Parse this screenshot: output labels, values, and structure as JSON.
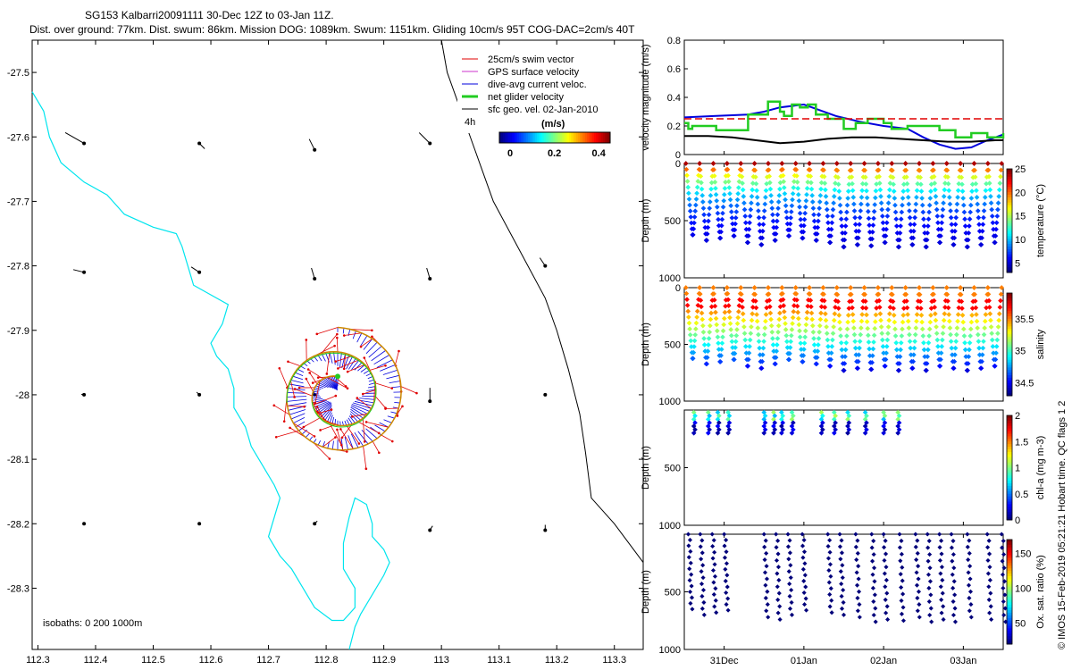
{
  "title": {
    "line1": "SG153 Kalbarri20091111 30-Dec 12Z to 03-Jan 11Z.",
    "line2": "Dist. over ground: 77km. Dist. swum: 86km. Mission DOG: 1089km. Swum: 1151km. Gliding 10cm/s 95T COG-DAC=2cm/s 40T"
  },
  "side_note": "© IMOS 15-Feb-2019 05:21:21 Hobart time. QC flags 1  2",
  "colors": {
    "swim": "#e00000",
    "gps": "#cc33cc",
    "dac": "#0000dd",
    "net": "#22cc22",
    "geo": "#000000",
    "coast": "#00e5ee",
    "isobath": "#000000",
    "oxygen": "#00007a"
  },
  "chart_data": [
    {
      "type": "map",
      "name": "glider track map",
      "xlabel": "",
      "ylabel": "",
      "xlim": [
        112.29,
        113.35
      ],
      "ylim": [
        -28.395,
        -27.45
      ],
      "xticks": [
        "112.3",
        "112.4",
        "112.5",
        "112.6",
        "112.7",
        "112.8",
        "112.9",
        "113",
        "113.1",
        "113.2",
        "113.3"
      ],
      "xtick_values": [
        112.3,
        112.4,
        112.5,
        112.6,
        112.7,
        112.8,
        112.9,
        113.0,
        113.1,
        113.2,
        113.3
      ],
      "yticks": [
        "-27.5",
        "-27.6",
        "-27.7",
        "-27.8",
        "-27.9",
        "-28",
        "-28.1",
        "-28.2",
        "-28.3"
      ],
      "ytick_values": [
        -27.5,
        -27.6,
        -27.7,
        -27.8,
        -27.9,
        -28.0,
        -28.1,
        -28.2,
        -28.3
      ],
      "legend": {
        "placement": "top-right",
        "items": [
          {
            "label": "25cm/s swim vector",
            "color_key": "swim"
          },
          {
            "label": "GPS surface velocity",
            "color_key": "gps"
          },
          {
            "label": "dive-avg current veloc.",
            "color_key": "dac"
          },
          {
            "label": "net glider velocity",
            "color_key": "net"
          },
          {
            "label": "sfc geo. vel. 02-Jan-2010",
            "color_key": "geo"
          }
        ],
        "extra_label": "4h"
      },
      "colorbar": {
        "title": "(m/s)",
        "ticks": [
          "0",
          "0.2",
          "0.4"
        ],
        "tick_values": [
          0,
          0.2,
          0.4
        ],
        "range": [
          0,
          0.5
        ]
      },
      "isobath_note": "isobaths: 0   200  1000m",
      "coastline_0m": [
        [
          112.29,
          -27.53
        ],
        [
          112.31,
          -27.56
        ],
        [
          112.32,
          -27.6
        ],
        [
          112.34,
          -27.64
        ],
        [
          112.38,
          -27.67
        ],
        [
          112.42,
          -27.69
        ],
        [
          112.45,
          -27.72
        ],
        [
          112.5,
          -27.74
        ],
        [
          112.54,
          -27.75
        ],
        [
          112.55,
          -27.77
        ],
        [
          112.56,
          -27.8
        ],
        [
          112.57,
          -27.83
        ],
        [
          112.63,
          -27.86
        ],
        [
          112.62,
          -27.89
        ],
        [
          112.6,
          -27.92
        ],
        [
          112.61,
          -27.94
        ],
        [
          112.63,
          -27.96
        ],
        [
          112.64,
          -27.99
        ],
        [
          112.64,
          -28.02
        ],
        [
          112.66,
          -28.05
        ],
        [
          112.67,
          -28.08
        ],
        [
          112.69,
          -28.11
        ],
        [
          112.71,
          -28.14
        ],
        [
          112.72,
          -28.16
        ],
        [
          112.71,
          -28.19
        ],
        [
          112.7,
          -28.22
        ],
        [
          112.72,
          -28.25
        ],
        [
          112.74,
          -28.27
        ],
        [
          112.76,
          -28.3
        ],
        [
          112.78,
          -28.33
        ],
        [
          112.81,
          -28.35
        ],
        [
          112.83,
          -28.35
        ],
        [
          112.85,
          -28.33
        ],
        [
          112.85,
          -28.3
        ],
        [
          112.83,
          -28.27
        ],
        [
          112.83,
          -28.23
        ],
        [
          112.84,
          -28.19
        ],
        [
          112.85,
          -28.16
        ],
        [
          112.87,
          -28.17
        ],
        [
          112.88,
          -28.2
        ],
        [
          112.88,
          -28.22
        ],
        [
          112.9,
          -28.24
        ],
        [
          112.91,
          -28.26
        ],
        [
          112.9,
          -28.28
        ],
        [
          112.88,
          -28.31
        ],
        [
          112.86,
          -28.34
        ],
        [
          112.85,
          -28.36
        ],
        [
          112.84,
          -28.395
        ]
      ],
      "isobath_200m": [
        [
          113.0,
          -27.45
        ],
        [
          113.01,
          -27.5
        ],
        [
          113.03,
          -27.55
        ],
        [
          113.05,
          -27.6
        ],
        [
          113.07,
          -27.65
        ],
        [
          113.09,
          -27.7
        ],
        [
          113.12,
          -27.75
        ],
        [
          113.15,
          -27.8
        ],
        [
          113.18,
          -27.85
        ],
        [
          113.2,
          -27.9
        ],
        [
          113.22,
          -27.96
        ],
        [
          113.24,
          -28.03
        ],
        [
          113.25,
          -28.09
        ],
        [
          113.26,
          -28.16
        ],
        [
          113.3,
          -28.2
        ],
        [
          113.35,
          -28.26
        ]
      ],
      "geo_vectors": [
        {
          "lon": 112.38,
          "lat": -27.61,
          "u": 0.35,
          "v": 0.2
        },
        {
          "lon": 112.58,
          "lat": -27.61,
          "u": -0.1,
          "v": -0.1
        },
        {
          "lon": 112.78,
          "lat": -27.62,
          "u": 0.1,
          "v": 0.2
        },
        {
          "lon": 112.98,
          "lat": -27.61,
          "u": 0.2,
          "v": 0.2
        },
        {
          "lon": 112.38,
          "lat": -27.81,
          "u": 0.2,
          "v": 0.05
        },
        {
          "lon": 112.58,
          "lat": -27.81,
          "u": 0.15,
          "v": 0.1
        },
        {
          "lon": 112.78,
          "lat": -27.82,
          "u": 0.06,
          "v": 0.2
        },
        {
          "lon": 112.98,
          "lat": -27.82,
          "u": 0.06,
          "v": 0.2
        },
        {
          "lon": 113.18,
          "lat": -27.8,
          "u": 0.1,
          "v": 0.15
        },
        {
          "lon": 112.38,
          "lat": -28.0,
          "u": 0.05,
          "v": 0.01
        },
        {
          "lon": 112.58,
          "lat": -28.0,
          "u": 0.05,
          "v": 0.05
        },
        {
          "lon": 112.78,
          "lat": -28.0,
          "u": 0.02,
          "v": 0.05
        },
        {
          "lon": 112.98,
          "lat": -28.01,
          "u": 0.0,
          "v": 0.25
        },
        {
          "lon": 113.18,
          "lat": -28.0,
          "u": 0.01,
          "v": 0.0
        },
        {
          "lon": 112.38,
          "lat": -28.2,
          "u": -0.02,
          "v": -0.01
        },
        {
          "lon": 112.58,
          "lat": -28.2,
          "u": -0.02,
          "v": 0.0
        },
        {
          "lon": 112.78,
          "lat": -28.2,
          "u": -0.05,
          "v": 0.05
        },
        {
          "lon": 112.98,
          "lat": -28.21,
          "u": -0.05,
          "v": 0.08
        },
        {
          "lon": 113.18,
          "lat": -28.21,
          "u": 0.0,
          "v": 0.1
        }
      ],
      "track": {
        "start_lon": 112.79,
        "start_lat": -28.05,
        "turns": 2.0,
        "r_inner": 0.03,
        "r_outer": 0.11,
        "center_lon": 112.82,
        "center_lat": -28.0
      }
    },
    {
      "type": "line",
      "name": "velocity magnitude",
      "ylabel": "velocity magnitude (m/s)",
      "ylim": [
        0,
        0.8
      ],
      "yticks": [
        "0",
        "0.2",
        "0.4",
        "0.6",
        "0.8"
      ],
      "ytick_values": [
        0,
        0.2,
        0.4,
        0.6,
        0.8
      ],
      "xlim": [
        0,
        4.0
      ],
      "xticks": [
        "31Dec",
        "01Jan",
        "02Jan",
        "03Jan"
      ],
      "xtick_values": [
        0.5,
        1.5,
        2.5,
        3.5
      ],
      "series": [
        {
          "name": "dive-avg current veloc.",
          "color_key": "dac",
          "x": [
            0,
            0.4,
            0.8,
            1.0,
            1.2,
            1.5,
            1.6,
            1.9,
            2.2,
            2.5,
            2.8,
            3.0,
            3.2,
            3.4,
            3.6,
            3.8,
            4.0
          ],
          "y": [
            0.26,
            0.27,
            0.28,
            0.3,
            0.33,
            0.35,
            0.33,
            0.27,
            0.23,
            0.2,
            0.18,
            0.12,
            0.07,
            0.04,
            0.05,
            0.1,
            0.14
          ]
        },
        {
          "name": "net glider velocity",
          "color_key": "net",
          "x": [
            0,
            0.05,
            0.1,
            0.3,
            0.4,
            0.7,
            0.8,
            1.0,
            1.05,
            1.2,
            1.25,
            1.35,
            1.45,
            1.55,
            1.65,
            1.8,
            1.95,
            2.0,
            2.15,
            2.3,
            2.5,
            2.6,
            2.8,
            3.0,
            3.2,
            3.4,
            3.6,
            3.8,
            4.0
          ],
          "y": [
            0.22,
            0.18,
            0.2,
            0.2,
            0.17,
            0.17,
            0.28,
            0.28,
            0.37,
            0.3,
            0.27,
            0.35,
            0.33,
            0.35,
            0.28,
            0.25,
            0.25,
            0.18,
            0.22,
            0.25,
            0.22,
            0.18,
            0.2,
            0.2,
            0.17,
            0.12,
            0.15,
            0.12,
            0.15
          ]
        },
        {
          "name": "sfc geo. vel.",
          "color_key": "geo",
          "x": [
            0,
            0.3,
            0.6,
            0.9,
            1.2,
            1.5,
            1.8,
            2.1,
            2.4,
            2.7,
            3.0,
            3.3,
            3.6,
            3.9,
            4.0
          ],
          "y": [
            0.13,
            0.13,
            0.12,
            0.1,
            0.08,
            0.09,
            0.11,
            0.12,
            0.12,
            0.11,
            0.1,
            0.09,
            0.09,
            0.1,
            0.1
          ]
        },
        {
          "name": "25cm/s swim vector",
          "color_key": "swim",
          "x": [
            0,
            4.0
          ],
          "y": [
            0.25,
            0.25
          ],
          "dashed": true
        }
      ]
    },
    {
      "type": "scatter",
      "name": "temperature",
      "ylabel": "Depth (m)",
      "clabel": "temperature (°C)",
      "ylim": [
        1000,
        0
      ],
      "yticks": [
        "0",
        "500",
        "1000"
      ],
      "ytick_values": [
        0,
        500,
        1000
      ],
      "xlim": [
        0,
        4.0
      ],
      "cticks": [
        "5",
        "10",
        "15",
        "20",
        "25"
      ],
      "ctick_values": [
        5,
        10,
        15,
        20,
        25
      ],
      "crange": [
        3,
        25
      ],
      "dives": 23,
      "max_depths": [
        650,
        700,
        680,
        660,
        720,
        740,
        700,
        660,
        680,
        700,
        720,
        760,
        740,
        750,
        720,
        760,
        740,
        760,
        720,
        740,
        760,
        740,
        720
      ],
      "profile": {
        "kind": "temperature",
        "surface": 24,
        "bottom": 4
      }
    },
    {
      "type": "scatter",
      "name": "salinity",
      "ylabel": "Depth (m)",
      "clabel": "salinity",
      "ylim": [
        1000,
        0
      ],
      "yticks": [
        "0",
        "500",
        "1000"
      ],
      "ytick_values": [
        0,
        500,
        1000
      ],
      "xlim": [
        0,
        4.0
      ],
      "cticks": [
        "34.5",
        "35",
        "35.5"
      ],
      "ctick_values": [
        34.5,
        35.0,
        35.5
      ],
      "crange": [
        34.3,
        35.9
      ],
      "dives": 23,
      "max_depths": [
        650,
        700,
        680,
        660,
        720,
        740,
        700,
        660,
        680,
        700,
        720,
        760,
        740,
        750,
        720,
        760,
        740,
        760,
        720,
        740,
        760,
        740,
        720
      ],
      "profile": {
        "kind": "salinity"
      }
    },
    {
      "type": "scatter",
      "name": "chlorophyll",
      "ylabel": "Depth (m)",
      "clabel": "chl-a (mg m-3)",
      "ylim": [
        1000,
        0
      ],
      "yticks": [
        "500",
        "1000"
      ],
      "ytick_values": [
        500,
        1000
      ],
      "xlim": [
        0,
        4.0
      ],
      "cticks": [
        "0",
        "0.5",
        "1",
        "1.5",
        "2"
      ],
      "ctick_values": [
        0,
        0.5,
        1,
        1.5,
        2
      ],
      "crange": [
        0,
        2
      ],
      "dive_times": [
        0.12,
        0.3,
        0.42,
        0.55,
        1.0,
        1.12,
        1.22,
        1.35,
        1.72,
        1.88,
        2.05,
        2.27,
        2.5,
        2.68
      ],
      "max_depth": 200
    },
    {
      "type": "scatter",
      "name": "oxygen saturation",
      "ylabel": "Depth (m)",
      "clabel": "Ox. sat. ratio (%)",
      "ylim": [
        1000,
        0
      ],
      "yticks": [
        "500",
        "1000"
      ],
      "ytick_values": [
        500,
        1000
      ],
      "xlim": [
        0,
        4.0
      ],
      "xticks": [
        "31Dec",
        "01Jan",
        "02Jan",
        "03Jan"
      ],
      "xtick_values": [
        0.5,
        1.5,
        2.5,
        3.5
      ],
      "cticks": [
        "50",
        "100",
        "150"
      ],
      "ctick_values": [
        50,
        100,
        150
      ],
      "crange": [
        20,
        170
      ],
      "dive_times": [
        0.05,
        0.2,
        0.35,
        0.5,
        1.0,
        1.15,
        1.3,
        1.48,
        1.8,
        1.95,
        2.15,
        2.35,
        2.5,
        2.7,
        2.9,
        3.05,
        3.2,
        3.35,
        3.55,
        3.8,
        3.98
      ],
      "max_depths": [
        650,
        700,
        680,
        660,
        720,
        740,
        700,
        660,
        680,
        700,
        720,
        760,
        740,
        750,
        720,
        760,
        740,
        760,
        720,
        740,
        760
      ]
    }
  ]
}
